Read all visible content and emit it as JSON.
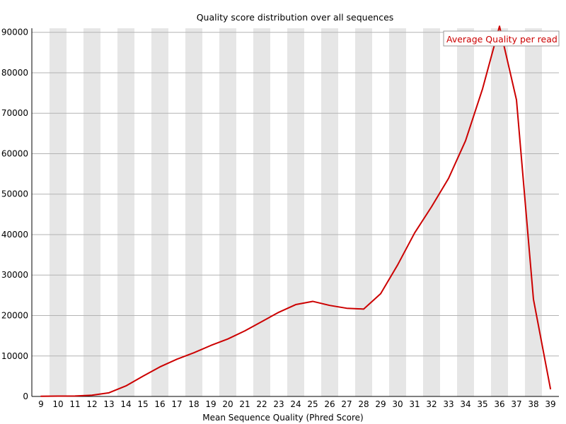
{
  "chart_data": {
    "type": "line",
    "title": "Quality score distribution over all sequences",
    "xlabel": "Mean Sequence Quality (Phred Score)",
    "ylabel": "",
    "x": [
      9,
      10,
      11,
      12,
      13,
      14,
      15,
      16,
      17,
      18,
      19,
      20,
      21,
      22,
      23,
      24,
      25,
      26,
      27,
      28,
      29,
      30,
      31,
      32,
      33,
      34,
      35,
      36,
      37,
      38,
      39
    ],
    "categories": [
      "9",
      "10",
      "11",
      "12",
      "13",
      "14",
      "15",
      "16",
      "17",
      "18",
      "19",
      "20",
      "21",
      "22",
      "23",
      "24",
      "25",
      "26",
      "27",
      "28",
      "29",
      "30",
      "31",
      "32",
      "33",
      "34",
      "35",
      "36",
      "37",
      "38",
      "39"
    ],
    "series": [
      {
        "name": "Average Quality per read",
        "color": "#cc0000",
        "values": [
          50,
          80,
          100,
          300,
          900,
          2600,
          5000,
          7300,
          9200,
          10800,
          12600,
          14200,
          16200,
          18500,
          20800,
          22700,
          23500,
          22500,
          21800,
          21600,
          25400,
          32500,
          40400,
          46900,
          53900,
          63200,
          76000,
          91500,
          73300,
          24000,
          1900
        ]
      }
    ],
    "xlim": [
      9,
      39
    ],
    "ylim": [
      0,
      91000
    ],
    "yticks": [
      0,
      10000,
      20000,
      30000,
      40000,
      50000,
      60000,
      70000,
      80000,
      90000
    ],
    "ytick_labels": [
      "0",
      "10000",
      "20000",
      "30000",
      "40000",
      "50000",
      "60000",
      "70000",
      "80000",
      "90000"
    ],
    "grid": true,
    "alternating_column_shading": true,
    "legend_position": "top-right",
    "colors": {
      "line": "#cc0000",
      "stripe": "#e6e6e6",
      "grid": "#b3b3b3",
      "axis": "#000000"
    }
  }
}
